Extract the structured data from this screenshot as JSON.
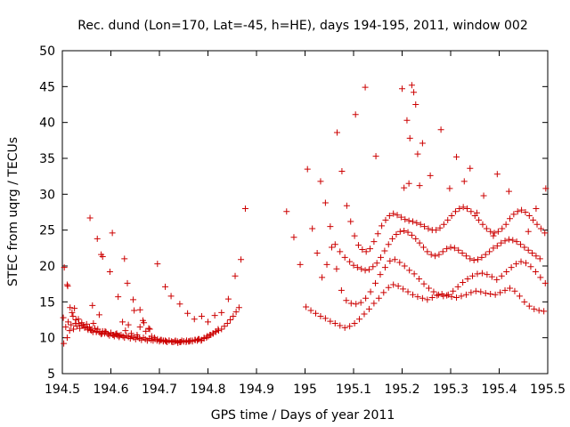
{
  "chart_data": {
    "type": "scatter",
    "title": "Rec. dund (Lon=170, Lat=-45, h=HE), days 194-195, 2011, window 002",
    "xlabel": "GPS time / Days of year 2011",
    "ylabel": "STEC from uqrg / TECUs",
    "xlim": [
      194.5,
      195.5
    ],
    "ylim": [
      5,
      50
    ],
    "xticks": [
      "194.5",
      "194.6",
      "194.7",
      "194.8",
      "194.9",
      "195",
      "195.1",
      "195.2",
      "195.3",
      "195.4",
      "195.5"
    ],
    "yticks": [
      "5",
      "10",
      "15",
      "20",
      "25",
      "30",
      "35",
      "40",
      "45",
      "50"
    ],
    "grid": false,
    "legend": "none",
    "marker": "plus",
    "color": "#cc0000",
    "series": [
      {
        "x": [
          194.502,
          194.503,
          194.507,
          194.51,
          194.512,
          194.515,
          194.518,
          194.52,
          194.523,
          194.527,
          194.53,
          194.533,
          194.536,
          194.54,
          194.543,
          194.546,
          194.55,
          194.553,
          194.556,
          194.56,
          194.563,
          194.567,
          194.57,
          194.573,
          194.577,
          194.58,
          194.583,
          194.587,
          194.59,
          194.594,
          194.597,
          194.6,
          194.604,
          194.607,
          194.61,
          194.614,
          194.617,
          194.621,
          194.625,
          194.628,
          194.632,
          194.636,
          194.64,
          194.643,
          194.647,
          194.651,
          194.655,
          194.659,
          194.663,
          194.667,
          194.671,
          194.675,
          194.679,
          194.683,
          194.687,
          194.691,
          194.695,
          194.7,
          194.704,
          194.708,
          194.712,
          194.716,
          194.72,
          194.725,
          194.729,
          194.733,
          194.737,
          194.742,
          194.746,
          194.75,
          194.755,
          194.76,
          194.764,
          194.768,
          194.773,
          194.778,
          194.782,
          194.787,
          194.792,
          194.797,
          194.801,
          194.806,
          194.811,
          194.816,
          194.821
        ],
        "y": [
          12.8,
          9.2,
          11.5,
          10.0,
          12.2,
          11.0,
          11.8,
          13.5,
          11.2,
          12.0,
          11.6,
          12.6,
          11.3,
          12.1,
          11.7,
          11.4,
          11.9,
          11.1,
          11.5,
          11.0,
          10.8,
          11.3,
          10.9,
          11.2,
          10.7,
          10.5,
          10.9,
          10.6,
          10.8,
          10.5,
          10.3,
          10.6,
          10.4,
          10.2,
          10.5,
          10.3,
          10.1,
          10.4,
          10.2,
          10.0,
          10.3,
          10.1,
          9.9,
          10.2,
          10.0,
          9.8,
          10.1,
          9.9,
          9.7,
          10.0,
          9.8,
          9.6,
          9.9,
          9.7,
          9.6,
          9.8,
          9.6,
          9.5,
          9.7,
          9.5,
          9.6,
          9.4,
          9.6,
          9.5,
          9.4,
          9.6,
          9.5,
          9.4,
          9.6,
          9.5,
          9.4,
          9.5,
          9.6,
          9.5,
          9.7,
          9.6,
          9.8,
          9.7,
          9.9,
          10.0,
          10.2,
          10.4,
          10.6,
          10.9,
          11.2
        ]
      },
      {
        "x": [
          194.504,
          194.51,
          194.516,
          194.522,
          194.528,
          194.534,
          194.54,
          194.546,
          194.552,
          194.558,
          194.564,
          194.57,
          194.576,
          194.582,
          194.588,
          194.594,
          194.6,
          194.606,
          194.612,
          194.618,
          194.624,
          194.63,
          194.636,
          194.642,
          194.648,
          194.654,
          194.66,
          194.666,
          194.672,
          194.678,
          194.684,
          194.69,
          194.696,
          194.702,
          194.708,
          194.714,
          194.72,
          194.726,
          194.732,
          194.738,
          194.744,
          194.75,
          194.756,
          194.762,
          194.768,
          194.774,
          194.78,
          194.786,
          194.792,
          194.798,
          194.804,
          194.81,
          194.816,
          194.822,
          194.828,
          194.834,
          194.84,
          194.846,
          194.852,
          194.858,
          194.864
        ],
        "y": [
          19.8,
          17.4,
          14.2,
          13.0,
          12.5,
          12.0,
          11.8,
          11.5,
          11.3,
          11.1,
          12.0,
          10.8,
          13.2,
          10.6,
          10.9,
          10.5,
          10.7,
          10.4,
          10.6,
          10.3,
          12.2,
          11.0,
          11.8,
          10.6,
          13.8,
          10.4,
          11.5,
          12.4,
          10.9,
          11.3,
          10.2,
          10.0,
          9.8,
          9.7,
          9.6,
          9.5,
          9.6,
          9.4,
          9.5,
          9.3,
          9.4,
          9.5,
          9.6,
          9.5,
          9.6,
          9.7,
          9.8,
          9.6,
          10.0,
          10.2,
          10.4,
          10.6,
          10.8,
          11.0,
          11.2,
          11.6,
          12.0,
          12.5,
          13.0,
          13.6,
          14.2
        ]
      },
      {
        "x": [
          194.511,
          194.525,
          194.557,
          194.562,
          194.572,
          194.58,
          194.583,
          194.598,
          194.603,
          194.615,
          194.628,
          194.634,
          194.646,
          194.66,
          194.668,
          194.68,
          194.696,
          194.712,
          194.724,
          194.742,
          194.758,
          194.772,
          194.787,
          194.8,
          194.814,
          194.828,
          194.842,
          194.856,
          194.868,
          194.877
        ],
        "y": [
          17.2,
          14.1,
          26.7,
          14.5,
          23.8,
          21.6,
          21.3,
          19.2,
          24.6,
          15.7,
          21.0,
          17.6,
          15.3,
          13.9,
          12.1,
          11.2,
          20.3,
          17.1,
          15.8,
          14.7,
          13.4,
          12.6,
          13.0,
          12.2,
          13.1,
          13.5,
          15.4,
          18.6,
          20.9,
          28.0
        ]
      },
      {
        "x": [
          194.962,
          194.977,
          194.99
        ],
        "y": [
          27.6,
          24.0,
          20.2
        ]
      },
      {
        "x": [
          195.002,
          195.012,
          195.022,
          195.032,
          195.042,
          195.052,
          195.062,
          195.072,
          195.082,
          195.092,
          195.102,
          195.112,
          195.122,
          195.132,
          195.142,
          195.152,
          195.162,
          195.172,
          195.182,
          195.192,
          195.202,
          195.212,
          195.222,
          195.232,
          195.242,
          195.252,
          195.262,
          195.272,
          195.282,
          195.292,
          195.302,
          195.312,
          195.322,
          195.332,
          195.342,
          195.352,
          195.362,
          195.372,
          195.382,
          195.392,
          195.402,
          195.412,
          195.422,
          195.432,
          195.442,
          195.452,
          195.462,
          195.472,
          195.482,
          195.492
        ],
        "y": [
          14.3,
          13.8,
          13.4,
          13.0,
          12.7,
          12.3,
          12.0,
          11.7,
          11.4,
          11.6,
          12.0,
          12.6,
          13.3,
          14.0,
          14.8,
          15.5,
          16.3,
          17.0,
          17.4,
          17.2,
          16.8,
          16.4,
          16.0,
          15.7,
          15.5,
          15.3,
          15.6,
          15.9,
          16.1,
          15.9,
          15.7,
          15.6,
          15.8,
          16.0,
          16.3,
          16.5,
          16.4,
          16.2,
          16.1,
          16.0,
          16.3,
          16.6,
          16.9,
          16.5,
          15.8,
          15.0,
          14.4,
          14.0,
          13.8,
          13.7
        ]
      },
      {
        "x": [
          195.005,
          195.015,
          195.025,
          195.035,
          195.045,
          195.055,
          195.065,
          195.075,
          195.085,
          195.095,
          195.105,
          195.115,
          195.125,
          195.135,
          195.145,
          195.155,
          195.165,
          195.175,
          195.185,
          195.195,
          195.205,
          195.215,
          195.225,
          195.235,
          195.245,
          195.255,
          195.265,
          195.275,
          195.285,
          195.295,
          195.305,
          195.315,
          195.325,
          195.335,
          195.345,
          195.355,
          195.365,
          195.375,
          195.385,
          195.395,
          195.405,
          195.415,
          195.425,
          195.435,
          195.445,
          195.455,
          195.465,
          195.475,
          195.485,
          195.495
        ],
        "y": [
          33.5,
          25.2,
          21.8,
          18.4,
          20.2,
          22.6,
          19.6,
          16.6,
          15.2,
          14.8,
          14.7,
          14.9,
          15.5,
          16.4,
          17.6,
          18.8,
          19.8,
          20.7,
          20.9,
          20.5,
          20.0,
          19.4,
          18.9,
          18.2,
          17.5,
          16.9,
          16.4,
          16.0,
          15.8,
          16.0,
          16.5,
          17.1,
          17.7,
          18.2,
          18.6,
          18.9,
          19.0,
          18.8,
          18.5,
          18.1,
          18.6,
          19.2,
          19.8,
          20.3,
          20.6,
          20.4,
          19.9,
          19.2,
          18.4,
          17.6
        ]
      },
      {
        "x": [
          195.032,
          195.042,
          195.052,
          195.062,
          195.072,
          195.082,
          195.092,
          195.1,
          195.108,
          195.116,
          195.124,
          195.132,
          195.14,
          195.148,
          195.156,
          195.164,
          195.172,
          195.18,
          195.188,
          195.196,
          195.204,
          195.212,
          195.22,
          195.228,
          195.236,
          195.244,
          195.252,
          195.26,
          195.268,
          195.276,
          195.284,
          195.292,
          195.3,
          195.308,
          195.316,
          195.324,
          195.332,
          195.34,
          195.348,
          195.356,
          195.364,
          195.372,
          195.38,
          195.388,
          195.396,
          195.404,
          195.412,
          195.42,
          195.428,
          195.436,
          195.444,
          195.452,
          195.46,
          195.468,
          195.476,
          195.484
        ],
        "y": [
          31.8,
          28.8,
          25.5,
          23.0,
          22.0,
          21.2,
          20.6,
          20.1,
          19.8,
          19.6,
          19.4,
          19.5,
          19.9,
          20.4,
          21.2,
          22.1,
          23.0,
          23.8,
          24.4,
          24.8,
          24.9,
          24.7,
          24.3,
          23.8,
          23.2,
          22.6,
          22.0,
          21.6,
          21.4,
          21.6,
          22.0,
          22.4,
          22.6,
          22.5,
          22.2,
          21.8,
          21.4,
          21.0,
          20.8,
          20.9,
          21.2,
          21.6,
          22.0,
          22.5,
          22.8,
          23.2,
          23.5,
          23.7,
          23.6,
          23.4,
          23.0,
          22.6,
          22.2,
          21.8,
          21.4,
          21.0
        ]
      },
      {
        "x": [
          195.066,
          195.076,
          195.086,
          195.094,
          195.102,
          195.11,
          195.118,
          195.126,
          195.134,
          195.142,
          195.15,
          195.158,
          195.166,
          195.174,
          195.182,
          195.19,
          195.198,
          195.206,
          195.214,
          195.222,
          195.23,
          195.238,
          195.246,
          195.254,
          195.262,
          195.27,
          195.278,
          195.286,
          195.294,
          195.302,
          195.31,
          195.318,
          195.326,
          195.334,
          195.342,
          195.35,
          195.358,
          195.366,
          195.374,
          195.382,
          195.39,
          195.398,
          195.406,
          195.414,
          195.422,
          195.43,
          195.438,
          195.446,
          195.454,
          195.462,
          195.47,
          195.478,
          195.486,
          195.494
        ],
        "y": [
          38.6,
          33.2,
          28.4,
          26.2,
          24.2,
          22.9,
          22.3,
          22.0,
          22.4,
          23.4,
          24.5,
          25.6,
          26.4,
          27.0,
          27.3,
          27.1,
          26.8,
          26.5,
          26.3,
          26.2,
          26.0,
          25.8,
          25.5,
          25.2,
          25.0,
          25.0,
          25.3,
          25.8,
          26.4,
          27.0,
          27.6,
          28.0,
          28.2,
          28.0,
          27.6,
          27.0,
          26.4,
          25.8,
          25.2,
          24.8,
          24.6,
          24.8,
          25.2,
          25.8,
          26.6,
          27.2,
          27.6,
          27.8,
          27.5,
          27.0,
          26.4,
          25.8,
          25.2,
          24.6
        ]
      },
      {
        "x": [
          195.104,
          195.124,
          195.146,
          195.2,
          195.204,
          195.21,
          195.214,
          195.216,
          195.22,
          195.224,
          195.228,
          195.232,
          195.236,
          195.242,
          195.258,
          195.28,
          195.298,
          195.312,
          195.328,
          195.34,
          195.354,
          195.368,
          195.388,
          195.396,
          195.42,
          195.46,
          195.476,
          195.496
        ],
        "y": [
          41.1,
          44.9,
          35.3,
          44.7,
          30.9,
          40.3,
          31.5,
          37.8,
          45.2,
          44.2,
          42.5,
          35.6,
          31.2,
          37.1,
          32.6,
          39.0,
          30.8,
          35.2,
          31.8,
          33.6,
          27.4,
          29.8,
          24.2,
          32.8,
          30.4,
          24.8,
          28.0,
          30.8
        ]
      }
    ]
  }
}
